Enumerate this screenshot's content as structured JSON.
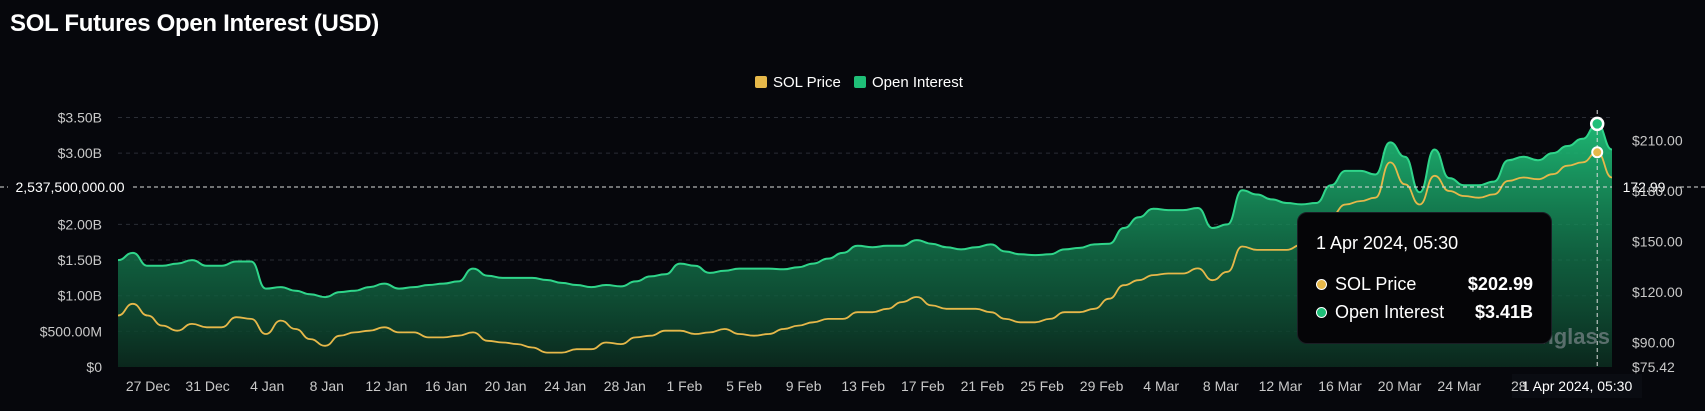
{
  "title": "SOL Futures Open Interest (USD)",
  "colors": {
    "price": "#e6b84a",
    "oi": "#1fbf78",
    "background": "#06070c",
    "tick": "#c9c9c9"
  },
  "watermark": "coinglass",
  "crosshair": {
    "left_label": "2,537,500,000.00",
    "right_label": "172.99",
    "x_label": "1 Apr 2024, 05:30"
  },
  "tooltip": {
    "date": "1 Apr 2024, 05:30",
    "rows": [
      {
        "name": "SOL Price",
        "value": "$202.99",
        "color": "#e6b84a"
      },
      {
        "name": "Open Interest",
        "value": "$3.41B",
        "color": "#1fbf78"
      }
    ]
  },
  "chart_data": {
    "type": "area",
    "title": "SOL Futures Open Interest (USD)",
    "legend": {
      "position": "top-center",
      "entries": [
        "SOL Price",
        "Open Interest"
      ]
    },
    "grid": true,
    "x_tick_labels": [
      "27 Dec",
      "31 Dec",
      "4 Jan",
      "8 Jan",
      "12 Jan",
      "16 Jan",
      "20 Jan",
      "24 Jan",
      "28 Jan",
      "1 Feb",
      "5 Feb",
      "9 Feb",
      "13 Feb",
      "17 Feb",
      "21 Feb",
      "25 Feb",
      "29 Feb",
      "4 Mar",
      "8 Mar",
      "12 Mar",
      "16 Mar",
      "20 Mar",
      "24 Mar",
      "28"
    ],
    "y_left": {
      "ticks": [
        "$0",
        "$500.00M",
        "$1.00B",
        "$1.50B",
        "$2.00B",
        "$3.00B",
        "$3.50B"
      ],
      "tick_values": [
        0,
        0.5,
        1.0,
        1.5,
        2.0,
        3.0,
        3.5
      ],
      "range": [
        0,
        3.5
      ],
      "unit": "B USD"
    },
    "y_right": {
      "ticks": [
        "$75.42",
        "$90.00",
        "$120.00",
        "$150.00",
        "$180.00",
        "$210.00"
      ],
      "tick_values": [
        75.42,
        90,
        120,
        150,
        180,
        210
      ],
      "range": [
        75.42,
        210
      ]
    },
    "x_start": "2023-12-25",
    "series": [
      {
        "name": "Open Interest",
        "axis": "left",
        "values_billion_usd": [
          1.5,
          1.6,
          1.42,
          1.42,
          1.45,
          1.5,
          1.42,
          1.42,
          1.48,
          1.48,
          1.1,
          1.12,
          1.07,
          1.02,
          0.98,
          1.05,
          1.07,
          1.12,
          1.17,
          1.1,
          1.12,
          1.15,
          1.17,
          1.2,
          1.38,
          1.28,
          1.25,
          1.25,
          1.25,
          1.22,
          1.18,
          1.15,
          1.12,
          1.15,
          1.13,
          1.2,
          1.27,
          1.3,
          1.45,
          1.42,
          1.32,
          1.35,
          1.38,
          1.38,
          1.38,
          1.37,
          1.4,
          1.45,
          1.52,
          1.6,
          1.7,
          1.68,
          1.7,
          1.7,
          1.78,
          1.73,
          1.68,
          1.65,
          1.68,
          1.72,
          1.62,
          1.58,
          1.57,
          1.58,
          1.65,
          1.67,
          1.72,
          1.73,
          1.95,
          2.1,
          2.22,
          2.2,
          2.2,
          2.23,
          1.95,
          2.0,
          2.48,
          2.42,
          2.35,
          2.3,
          2.28,
          2.3,
          2.55,
          2.75,
          2.75,
          2.7,
          3.15,
          2.95,
          2.45,
          3.05,
          2.65,
          2.55,
          2.55,
          2.6,
          2.9,
          2.95,
          2.9,
          3.0,
          3.1,
          3.2,
          3.41,
          3.05
        ]
      },
      {
        "name": "SOL Price",
        "axis": "right",
        "values_usd": [
          106,
          113,
          106,
          100,
          97,
          101,
          99,
          99,
          105,
          104,
          95,
          103,
          98,
          92,
          88,
          94,
          96,
          97,
          99,
          96,
          96,
          93,
          93,
          94,
          96,
          91,
          90,
          89,
          87,
          84,
          84,
          86,
          86,
          90,
          89,
          93,
          94,
          97,
          97,
          95,
          96,
          98,
          95,
          94,
          95,
          98,
          100,
          102,
          104,
          104,
          108,
          108,
          110,
          114,
          117,
          112,
          110,
          110,
          110,
          108,
          104,
          102,
          102,
          104,
          108,
          108,
          110,
          116,
          124,
          127,
          130,
          131,
          131,
          134,
          127,
          132,
          147,
          145,
          145,
          145,
          148,
          151,
          165,
          172,
          174,
          176,
          197,
          184,
          172,
          189,
          180,
          177,
          176,
          178,
          186,
          188,
          187,
          190,
          195,
          197,
          202.99,
          188
        ]
      }
    ]
  }
}
